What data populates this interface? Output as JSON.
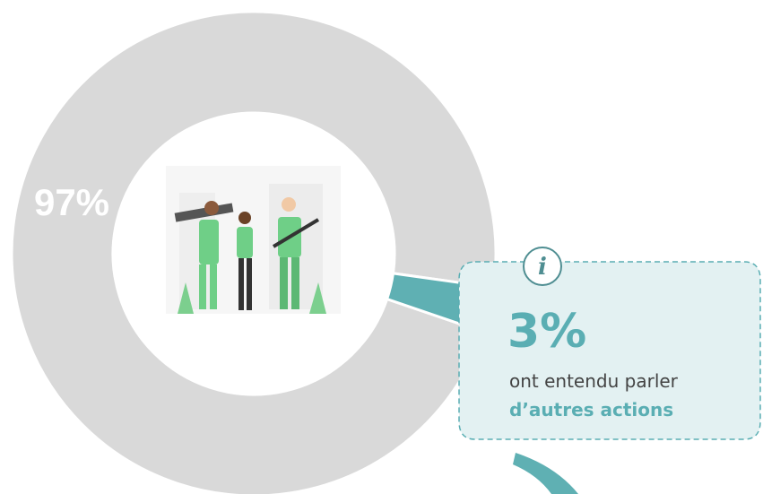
{
  "chart_data": {
    "type": "pie",
    "donut": true,
    "values": [
      97,
      3
    ],
    "value_labels": [
      "97%",
      "3%"
    ],
    "colors": [
      "#d9d9d9",
      "#5fb0b3"
    ],
    "info_icon": "i",
    "annotation": "ont entendu parler",
    "annotation_highlight": "d’autres actions"
  }
}
